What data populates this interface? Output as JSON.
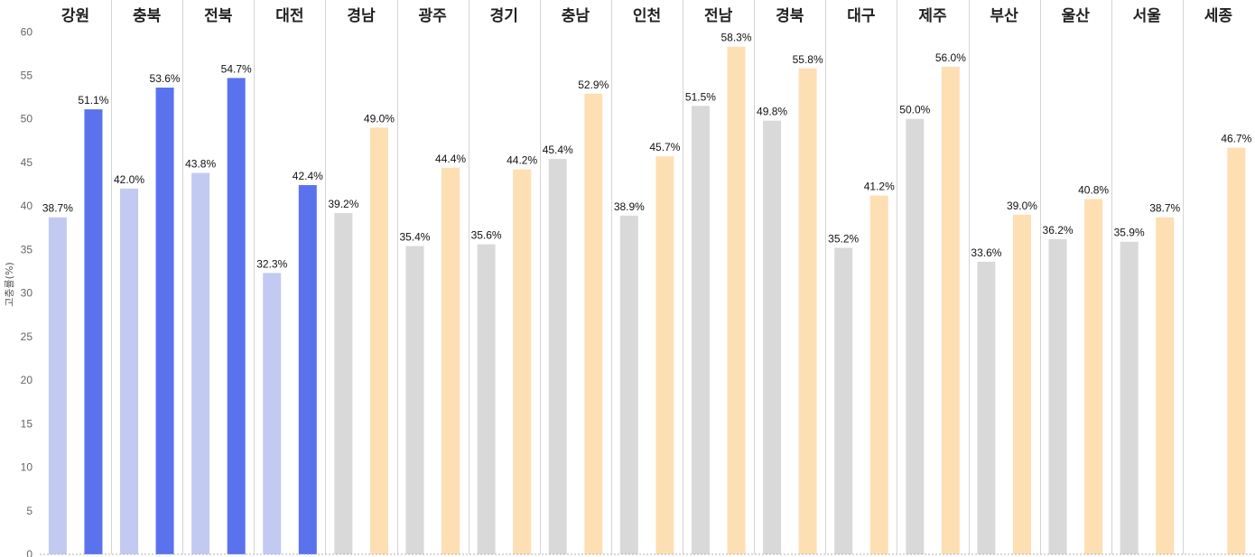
{
  "chart_data": {
    "type": "bar",
    "ylabel": "고충률(%)",
    "ylim": [
      0,
      62
    ],
    "yticks": [
      0,
      5,
      10,
      15,
      20,
      25,
      30,
      35,
      40,
      45,
      50,
      55,
      60
    ],
    "value_suffix": "%",
    "grid": false,
    "categories": [
      "강원",
      "충북",
      "전북",
      "대전",
      "경남",
      "광주",
      "경기",
      "충남",
      "인천",
      "전남",
      "경북",
      "대구",
      "제주",
      "부산",
      "울산",
      "서울",
      "세종"
    ],
    "series": [
      {
        "values": [
          38.7,
          42.0,
          43.8,
          32.3,
          39.2,
          35.4,
          35.6,
          45.4,
          38.9,
          51.5,
          49.8,
          35.2,
          50.0,
          33.6,
          36.2,
          35.9,
          null
        ]
      },
      {
        "values": [
          51.1,
          53.6,
          54.7,
          42.4,
          49.0,
          44.4,
          44.2,
          52.9,
          45.7,
          58.3,
          55.8,
          41.2,
          56.0,
          39.0,
          40.8,
          38.7,
          46.7
        ]
      }
    ],
    "group_colors": {
      "highlight": {
        "first": "#c3caf2",
        "second": "#5a72ee",
        "categories": [
          "강원",
          "충북",
          "전북",
          "대전"
        ]
      },
      "other": {
        "first": "#d9d9d9",
        "second": "#fddfb3"
      }
    }
  }
}
